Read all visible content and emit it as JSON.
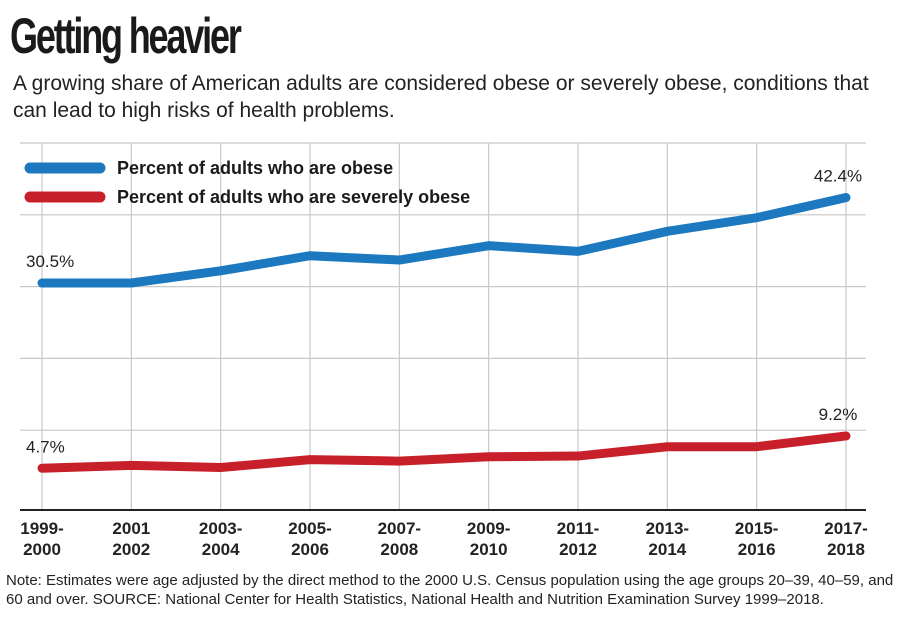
{
  "header": {
    "title": "Getting heavier",
    "subtitle": "A growing share of American adults are considered obese or severely obese, conditions that can lead to high risks of health problems."
  },
  "note": "Note: Estimates were age adjusted by the direct method to the 2000 U.S. Census population using the age groups 20–39, 40–59, and 60 and over. SOURCE: National Center for Health Statistics, National Health and Nutrition Examination Survey 1999–2018.",
  "colors": {
    "obese": "#1c79c0",
    "severe": "#c8202b",
    "grid": "#c8c8c8"
  },
  "chart_data": {
    "type": "line",
    "title": "Getting heavier",
    "categories": [
      [
        "1999-",
        "2000"
      ],
      [
        "2001",
        "2002"
      ],
      [
        "2003-",
        "2004"
      ],
      [
        "2005-",
        "2006"
      ],
      [
        "2007-",
        "2008"
      ],
      [
        "2009-",
        "2010"
      ],
      [
        "2011-",
        "2012"
      ],
      [
        "2013-",
        "2014"
      ],
      [
        "2015-",
        "2016"
      ],
      [
        "2017-",
        "2018"
      ]
    ],
    "series": [
      {
        "name": "Percent of adults who are obese",
        "color": "#1c79c0",
        "values": [
          30.5,
          30.5,
          32.2,
          34.3,
          33.7,
          35.7,
          34.9,
          37.7,
          39.6,
          42.4
        ],
        "labels": [
          {
            "index": 0,
            "text": "30.5%"
          },
          {
            "index": 9,
            "text": "42.4%"
          }
        ]
      },
      {
        "name": "Percent of adults who are severely obese",
        "color": "#c8202b",
        "values": [
          4.7,
          5.1,
          4.8,
          5.9,
          5.7,
          6.3,
          6.4,
          7.7,
          7.7,
          9.2
        ],
        "labels": [
          {
            "index": 0,
            "text": "4.7%"
          },
          {
            "index": 9,
            "text": "9.2%"
          }
        ]
      }
    ],
    "ylim": [
      0,
      50
    ],
    "grid": true,
    "legend_position": "top-left"
  }
}
